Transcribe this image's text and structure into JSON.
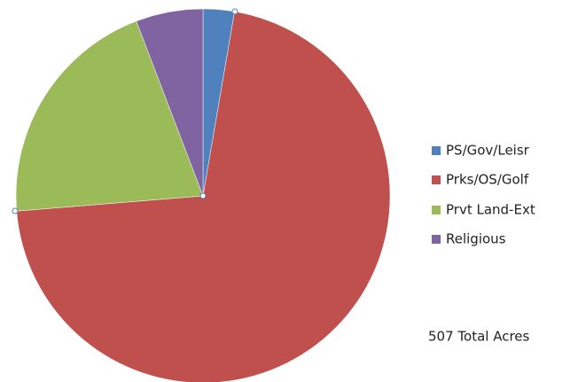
{
  "chart_data": {
    "type": "pie",
    "categories": [
      "PS/Gov/Leisr",
      "Prks/OS/Golf",
      "Prvt Land-Ext",
      "Religious"
    ],
    "values": [
      2.7,
      71,
      20.5,
      5.8
    ],
    "colors": [
      "#4f81bd",
      "#c0504d",
      "#9bbb59",
      "#8064a2"
    ],
    "annotation": "507 Total Acres",
    "legend": "right"
  }
}
